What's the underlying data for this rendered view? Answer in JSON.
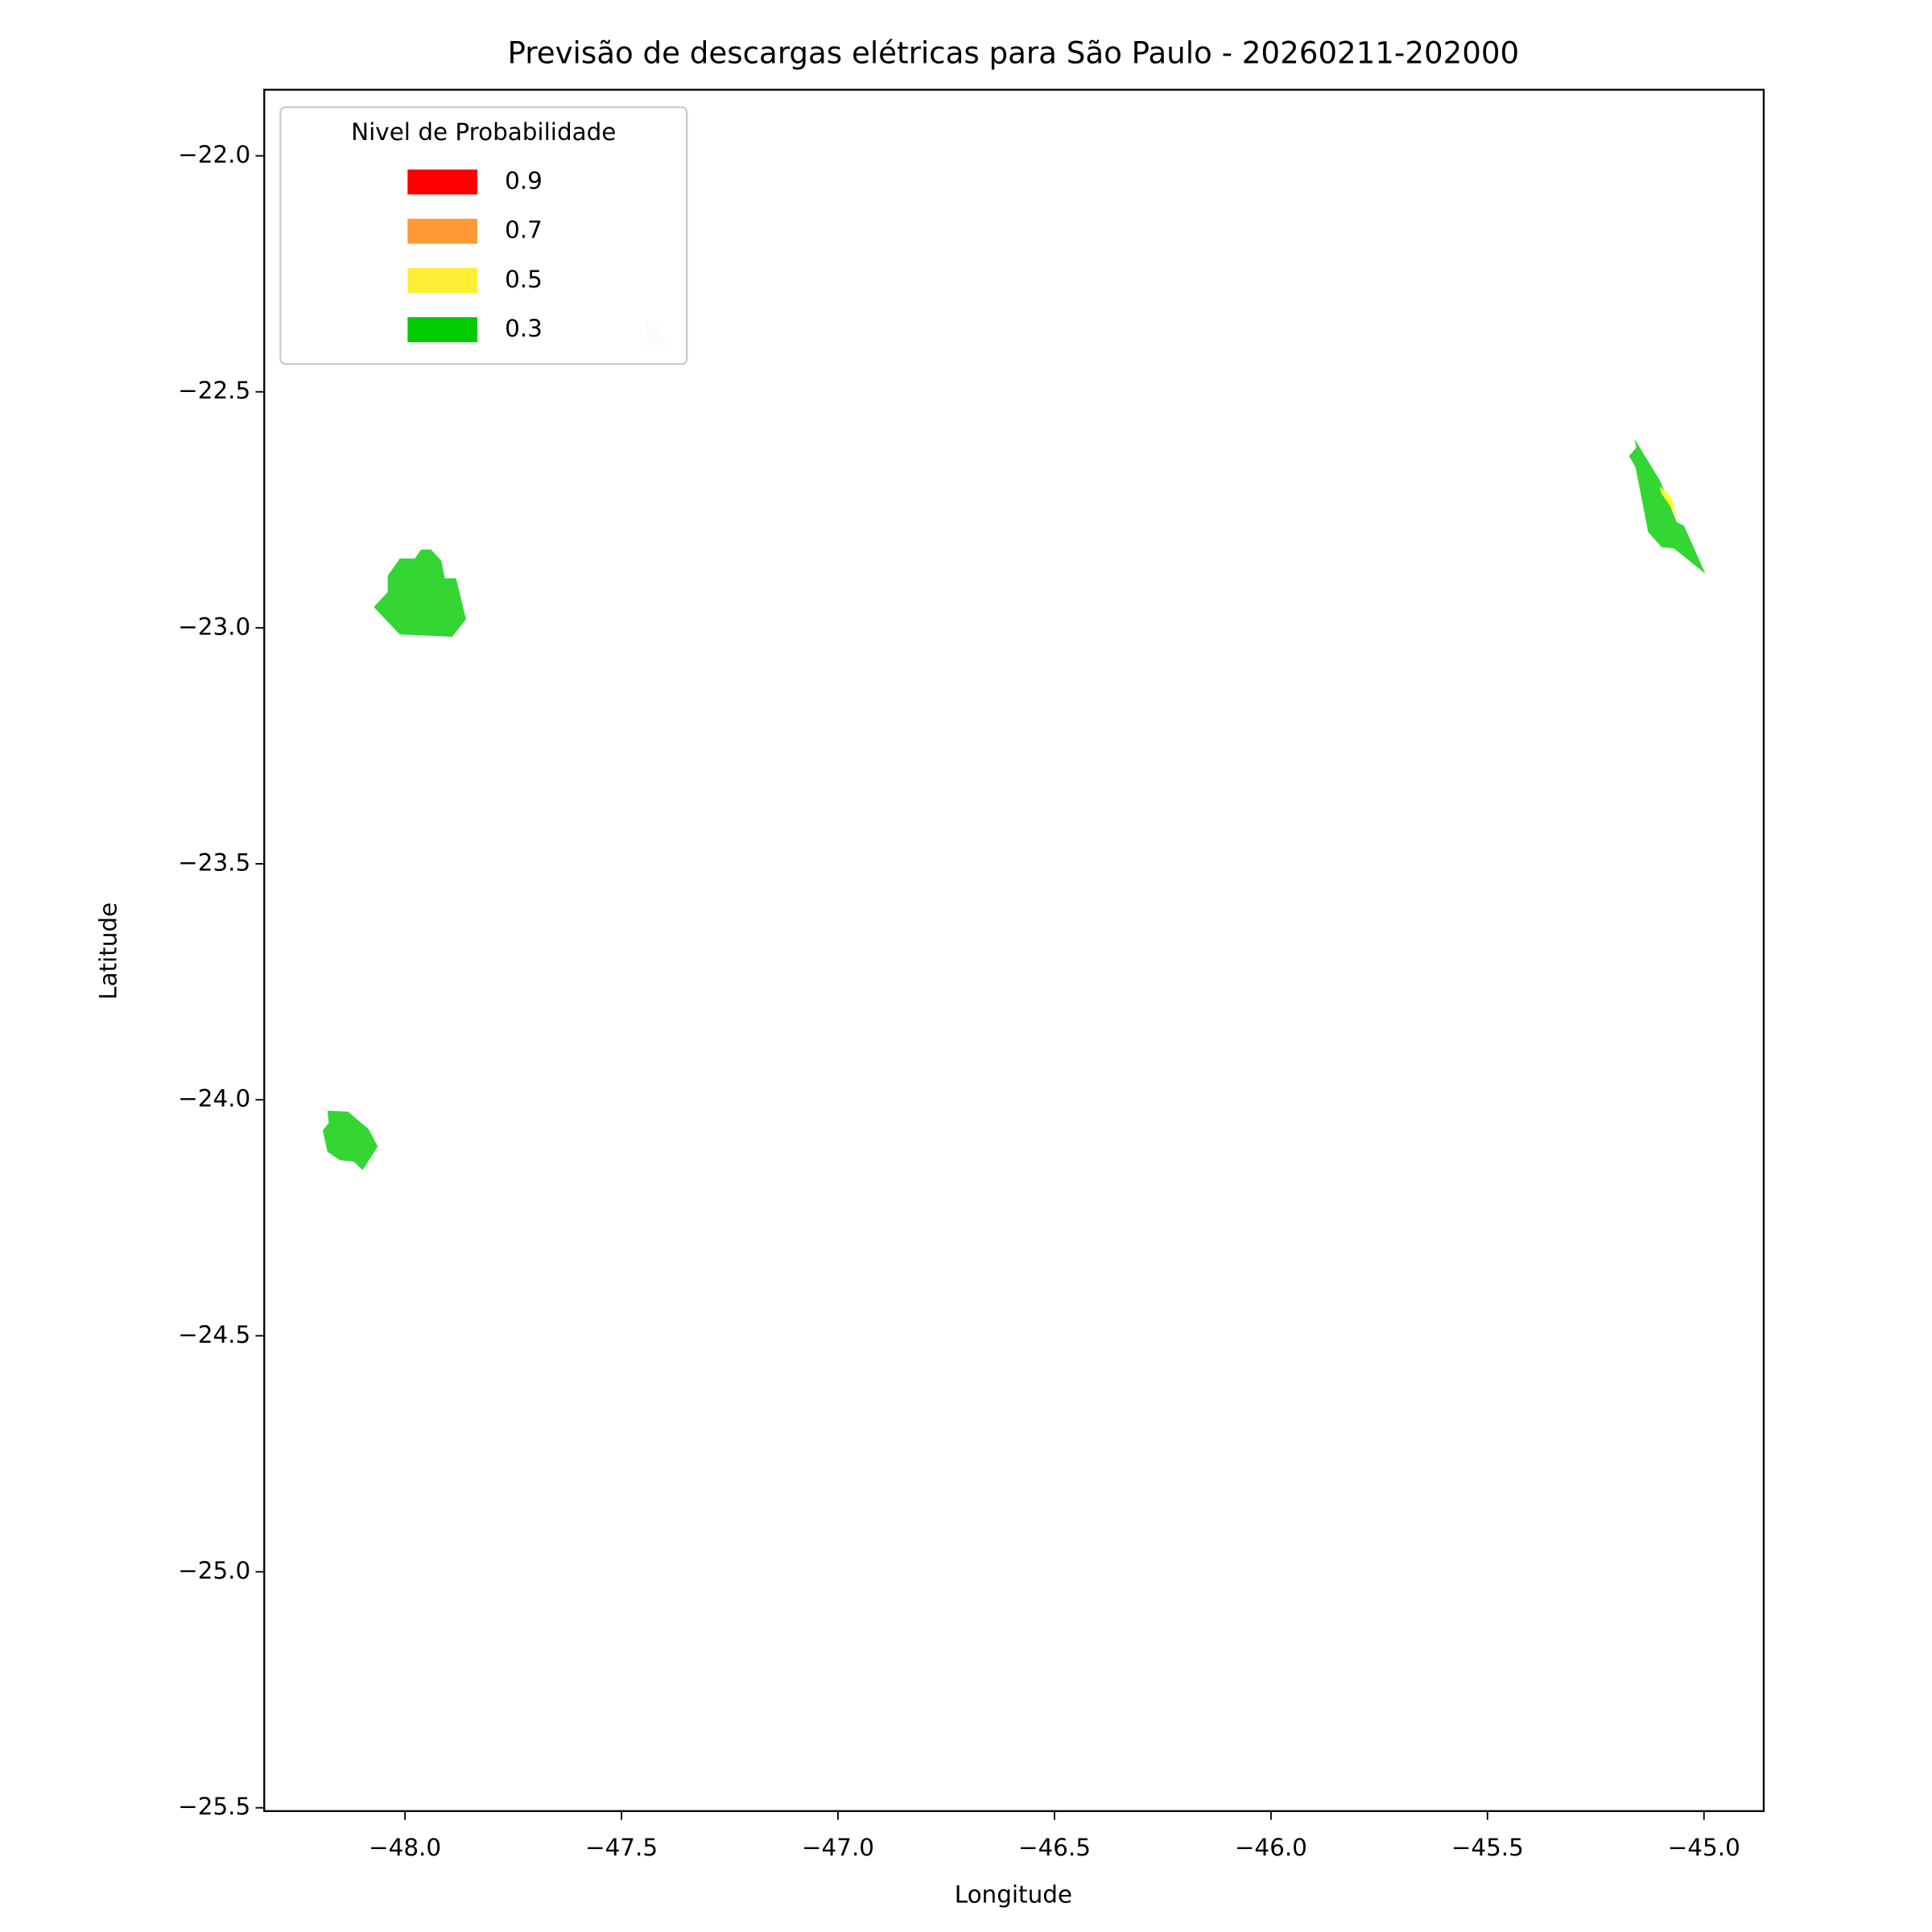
{
  "chart_data": {
    "type": "polygon",
    "title": "Previsão de descargas elétricas para São Paulo - 20260211-202000",
    "xlabel": "Longitude",
    "ylabel": "Latitude",
    "xlim": [
      -48.325,
      -44.862
    ],
    "ylim": [
      -25.507,
      -21.86
    ],
    "xticks": [
      {
        "value": -48.0,
        "label": "−48.0"
      },
      {
        "value": -47.5,
        "label": "−47.5"
      },
      {
        "value": -47.0,
        "label": "−47.0"
      },
      {
        "value": -46.5,
        "label": "−46.5"
      },
      {
        "value": -46.0,
        "label": "−46.0"
      },
      {
        "value": -45.5,
        "label": "−45.5"
      },
      {
        "value": -45.0,
        "label": "−45.0"
      }
    ],
    "yticks": [
      {
        "value": -22.0,
        "label": "−22.0"
      },
      {
        "value": -22.5,
        "label": "−22.5"
      },
      {
        "value": -23.0,
        "label": "−23.0"
      },
      {
        "value": -23.5,
        "label": "−23.5"
      },
      {
        "value": -24.0,
        "label": "−24.0"
      },
      {
        "value": -24.5,
        "label": "−24.5"
      },
      {
        "value": -25.0,
        "label": "−25.0"
      },
      {
        "value": -25.5,
        "label": "−25.5"
      }
    ],
    "polygons": [
      {
        "color": "#d4f4d4",
        "points": [
          [
            -47.447,
            -22.351
          ],
          [
            -47.418,
            -22.351
          ],
          [
            -47.407,
            -22.383
          ],
          [
            -47.387,
            -22.396
          ],
          [
            -47.387,
            -22.412
          ],
          [
            -47.433,
            -22.412
          ]
        ]
      },
      {
        "color": "#33d633",
        "points": [
          [
            -48.072,
            -22.956
          ],
          [
            -48.04,
            -22.924
          ],
          [
            -48.04,
            -22.89
          ],
          [
            -48.012,
            -22.853
          ],
          [
            -47.977,
            -22.853
          ],
          [
            -47.963,
            -22.834
          ],
          [
            -47.94,
            -22.834
          ],
          [
            -47.916,
            -22.858
          ],
          [
            -47.908,
            -22.895
          ],
          [
            -47.882,
            -22.895
          ],
          [
            -47.859,
            -22.982
          ],
          [
            -47.891,
            -23.019
          ],
          [
            -48.012,
            -23.014
          ],
          [
            -48.037,
            -22.99
          ]
        ]
      },
      {
        "color": "#33d633",
        "points": [
          [
            -48.179,
            -24.023
          ],
          [
            -48.132,
            -24.025
          ],
          [
            -48.084,
            -24.062
          ],
          [
            -48.063,
            -24.099
          ],
          [
            -48.098,
            -24.149
          ],
          [
            -48.118,
            -24.131
          ],
          [
            -48.15,
            -24.128
          ],
          [
            -48.179,
            -24.11
          ],
          [
            -48.19,
            -24.065
          ],
          [
            -48.176,
            -24.049
          ]
        ]
      },
      {
        "color": "#33d633",
        "points": [
          [
            -45.161,
            -22.599
          ],
          [
            -45.101,
            -22.689
          ],
          [
            -45.063,
            -22.776
          ],
          [
            -45.046,
            -22.784
          ],
          [
            -44.997,
            -22.885
          ],
          [
            -45.069,
            -22.832
          ],
          [
            -45.098,
            -22.829
          ],
          [
            -45.129,
            -22.797
          ],
          [
            -45.158,
            -22.66
          ],
          [
            -45.173,
            -22.636
          ],
          [
            -45.156,
            -22.618
          ]
        ]
      },
      {
        "color": "#ffff33",
        "points": [
          [
            -45.103,
            -22.7
          ],
          [
            -45.077,
            -22.721
          ],
          [
            -45.063,
            -22.758
          ],
          [
            -45.055,
            -22.776
          ],
          [
            -45.069,
            -22.753
          ],
          [
            -45.098,
            -22.716
          ]
        ]
      }
    ],
    "legend": {
      "title": "Nivel de Probabilidade",
      "location": "upper left",
      "items": [
        {
          "label": 0.9,
          "color": "#ff0000"
        },
        {
          "label": 0.7,
          "color": "#ff9933"
        },
        {
          "label": 0.5,
          "color": "#ffee33"
        },
        {
          "label": 0.3,
          "color": "#00cc00"
        }
      ]
    }
  }
}
